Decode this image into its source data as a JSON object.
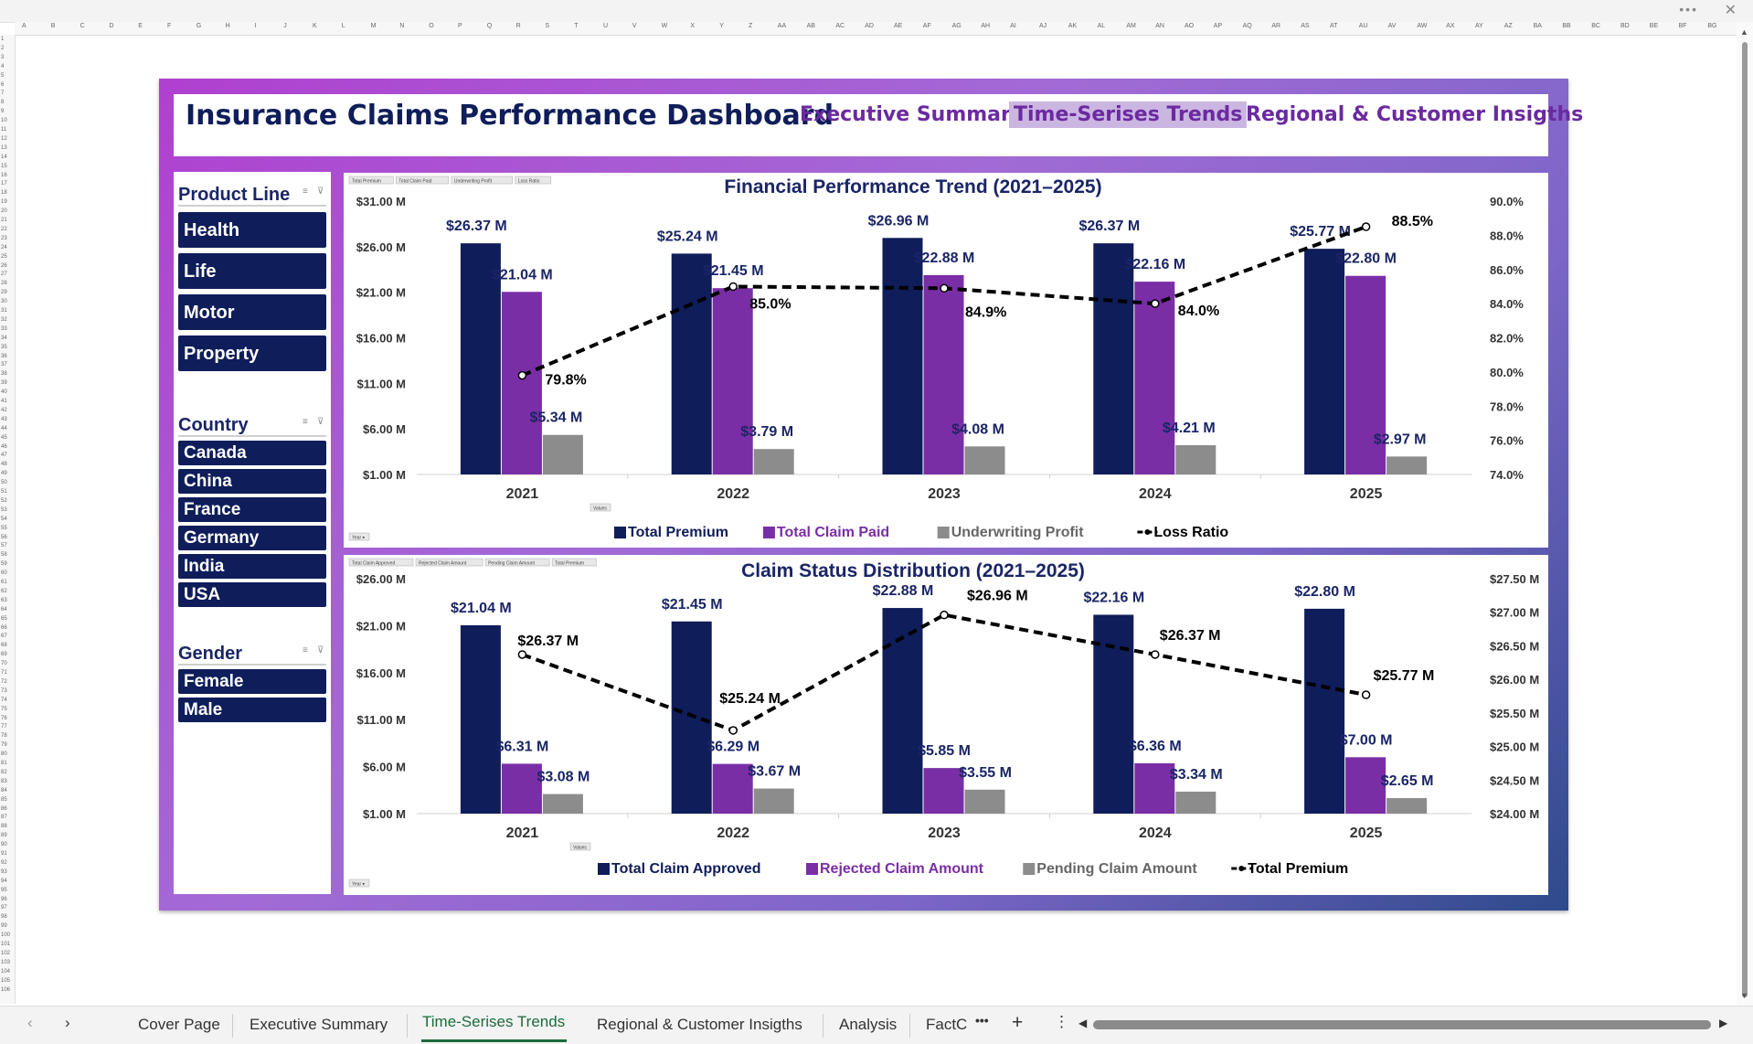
{
  "dashboard": {
    "title": "Insurance Claims Performance Dashboard",
    "nav": {
      "executive_summary": "Executive Summary",
      "time_series_trends": "Time-Serises Trends",
      "regional_customer": "Regional & Customer Insigths"
    }
  },
  "slicers": {
    "product_line": {
      "title": "Product Line",
      "items": [
        "Health",
        "Life",
        "Motor",
        "Property"
      ]
    },
    "country": {
      "title": "Country",
      "items": [
        "Canada",
        "China",
        "France",
        "Germany",
        "India",
        "USA"
      ]
    },
    "gender": {
      "title": "Gender",
      "items": [
        "Female",
        "Male"
      ]
    }
  },
  "chart_data": [
    {
      "type": "bar",
      "title": "Financial Performance Trend (2021–2025)",
      "categories": [
        "2021",
        "2022",
        "2023",
        "2024",
        "2025"
      ],
      "series": [
        {
          "name": "Total Premium",
          "values": [
            26.37,
            25.24,
            26.96,
            26.37,
            25.77
          ],
          "labels": [
            "$26.37 M",
            "$25.24 M",
            "$26.96 M",
            "$26.37 M",
            "$25.77 M"
          ],
          "color": "#0f1d5a"
        },
        {
          "name": "Total Claim Paid",
          "values": [
            21.04,
            21.45,
            22.88,
            22.16,
            22.8
          ],
          "labels": [
            "$21.04 M",
            "$21.45 M",
            "$22.88 M",
            "$22.16 M",
            "$22.80 M"
          ],
          "color": "#7a2ea6"
        },
        {
          "name": "Underwriting Profit",
          "values": [
            5.34,
            3.79,
            4.08,
            4.21,
            2.97
          ],
          "labels": [
            "$5.34 M",
            "$3.79 M",
            "$4.08 M",
            "$4.21 M",
            "$2.97 M"
          ],
          "color": "#8c8c8c"
        }
      ],
      "line_series": {
        "name": "Loss Ratio",
        "values": [
          79.8,
          85.0,
          84.9,
          84.0,
          88.5
        ],
        "labels": [
          "79.8%",
          "85.0%",
          "84.9%",
          "84.0%",
          "88.5%"
        ],
        "axis": "right"
      },
      "y_ticks": [
        "$1.00 M",
        "$6.00 M",
        "$11.00 M",
        "$16.00 M",
        "$21.00 M",
        "$26.00 M",
        "$31.00 M"
      ],
      "ylim": [
        1,
        31
      ],
      "y2_ticks": [
        "74.0%",
        "76.0%",
        "78.0%",
        "80.0%",
        "82.0%",
        "84.0%",
        "86.0%",
        "88.0%",
        "90.0%"
      ],
      "y2lim": [
        74,
        90
      ],
      "field_buttons": [
        "Total Premium",
        "Total Claim Paid",
        "Underwriting Profit",
        "Loss Ratio"
      ],
      "axis_buttons": {
        "values": "Values",
        "year": "Year"
      },
      "legend_position": "bottom"
    },
    {
      "type": "bar",
      "title": "Claim Status Distribution (2021–2025)",
      "categories": [
        "2021",
        "2022",
        "2023",
        "2024",
        "2025"
      ],
      "series": [
        {
          "name": "Total Claim Approved",
          "values": [
            21.04,
            21.45,
            22.88,
            22.16,
            22.8
          ],
          "labels": [
            "$21.04 M",
            "$21.45 M",
            "$22.88 M",
            "$22.16 M",
            "$22.80 M"
          ],
          "color": "#0f1d5a"
        },
        {
          "name": "Rejected Claim Amount",
          "values": [
            6.31,
            6.29,
            5.85,
            6.36,
            7.0
          ],
          "labels": [
            "$6.31 M",
            "$6.29 M",
            "$5.85 M",
            "$6.36 M",
            "$7.00 M"
          ],
          "color": "#7a2ea6"
        },
        {
          "name": "Pending Claim Amount",
          "values": [
            3.08,
            3.67,
            3.55,
            3.34,
            2.65
          ],
          "labels": [
            "$3.08 M",
            "$3.67 M",
            "$3.55 M",
            "$3.34 M",
            "$2.65 M"
          ],
          "color": "#8c8c8c"
        }
      ],
      "line_series": {
        "name": "Total Premium",
        "values": [
          26.37,
          25.24,
          26.96,
          26.37,
          25.77
        ],
        "labels": [
          "$26.37 M",
          "$25.24 M",
          "$26.96 M",
          "$26.37 M",
          "$25.77 M"
        ],
        "axis": "right"
      },
      "y_ticks": [
        "$1.00 M",
        "$6.00 M",
        "$11.00 M",
        "$16.00 M",
        "$21.00 M",
        "$26.00 M"
      ],
      "ylim": [
        1,
        26
      ],
      "y2_ticks": [
        "$24.00 M",
        "$24.50 M",
        "$25.00 M",
        "$25.50 M",
        "$26.00 M",
        "$26.50 M",
        "$27.00 M",
        "$27.50 M"
      ],
      "y2lim": [
        24,
        27.5
      ],
      "field_buttons": [
        "Total Claim Approved",
        "Rejected Claim Amount",
        "Pending Claim Amount",
        "Total Premium"
      ],
      "axis_buttons": {
        "values": "Values",
        "year": "Year"
      },
      "legend_position": "bottom"
    }
  ],
  "columns": [
    "A",
    "B",
    "C",
    "D",
    "E",
    "F",
    "G",
    "H",
    "I",
    "J",
    "K",
    "L",
    "M",
    "N",
    "O",
    "P",
    "Q",
    "R",
    "S",
    "T",
    "U",
    "V",
    "W",
    "X",
    "Y",
    "Z",
    "AA",
    "AB",
    "AC",
    "AD",
    "AE",
    "AF",
    "AG",
    "AH",
    "AI",
    "AJ",
    "AK",
    "AL",
    "AM",
    "AN",
    "AO",
    "AP",
    "AQ",
    "AR",
    "AS",
    "AT",
    "AU",
    "AV",
    "AW",
    "AX",
    "AY",
    "AZ",
    "BA",
    "BB",
    "BC",
    "BD",
    "BE",
    "BF",
    "BG"
  ],
  "sheet_tabs": [
    "Cover Page",
    "Executive Summary",
    "Time-Serises Trends",
    "Regional & Customer Insigths",
    "Analysis",
    "FactC"
  ],
  "active_tab": "Time-Serises Trends",
  "tabbar_icons": [
    "prev-sheet-icon",
    "next-sheet-icon",
    "more-tabs-icon",
    "add-sheet-icon",
    "options-icon"
  ]
}
